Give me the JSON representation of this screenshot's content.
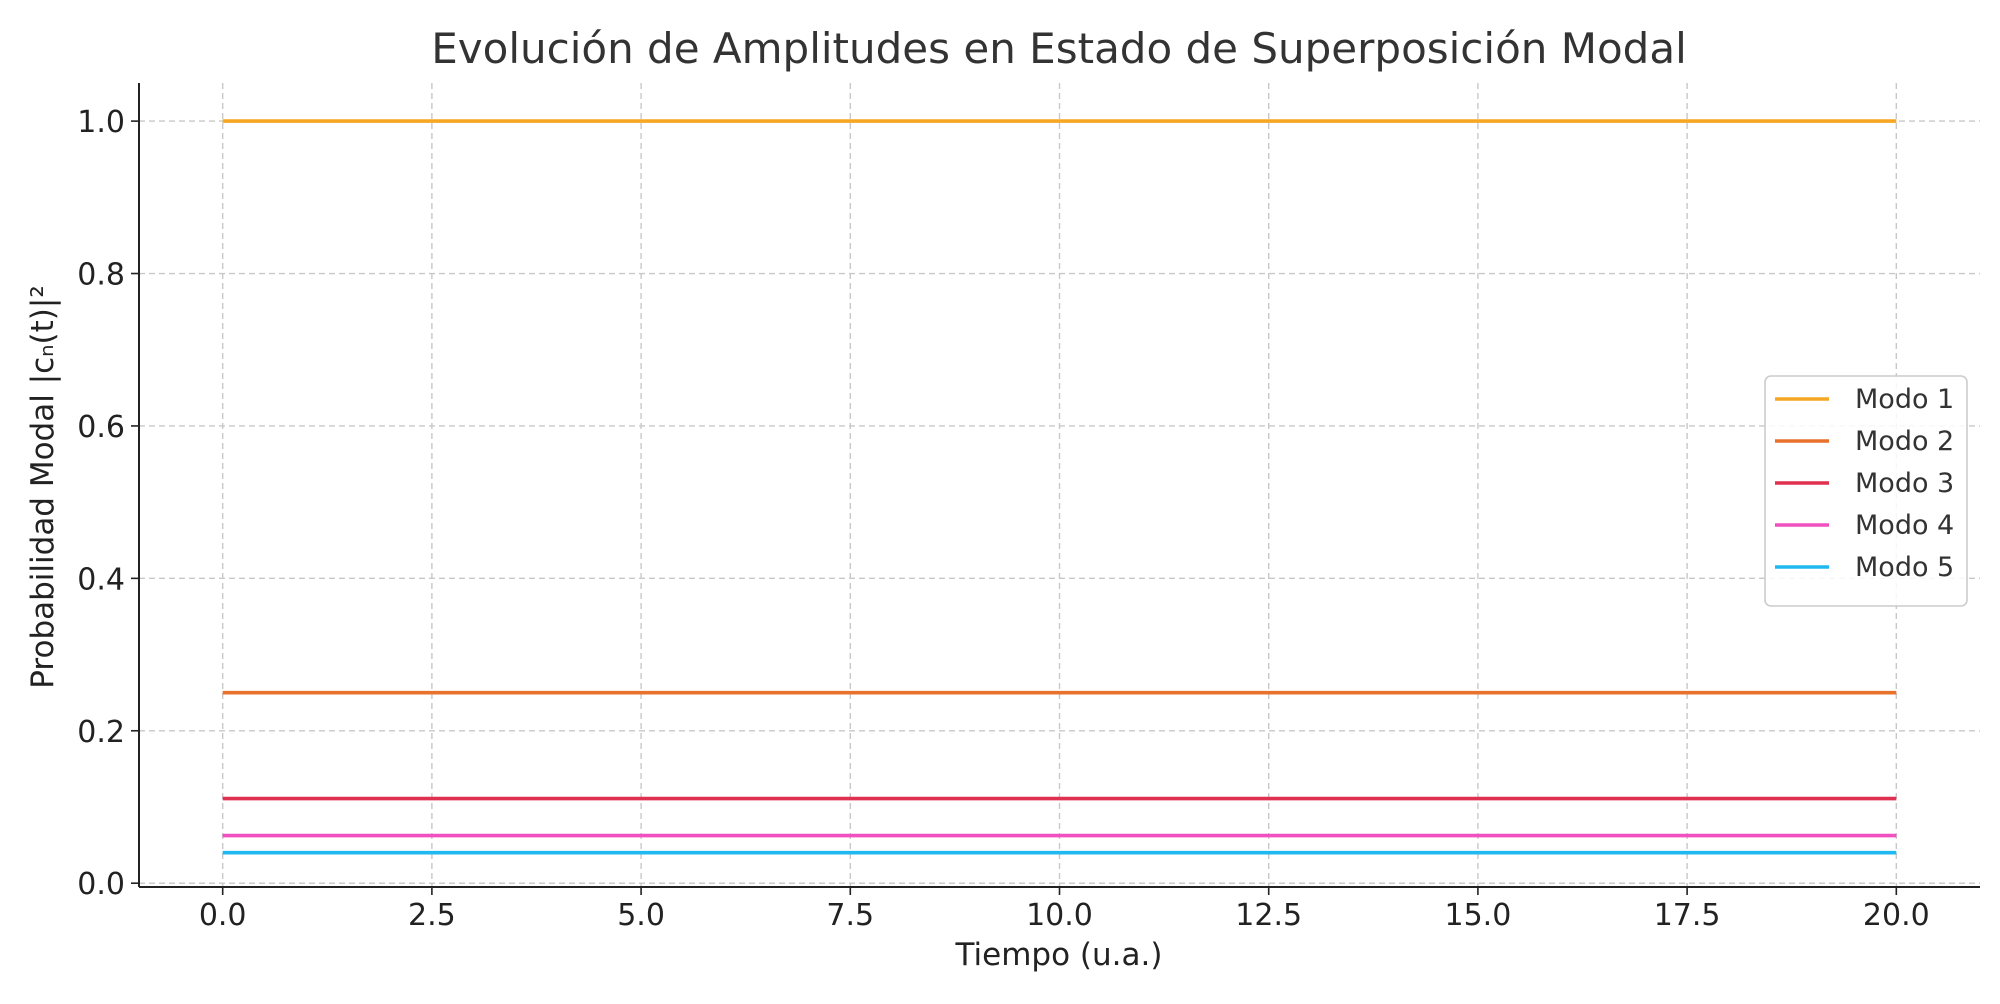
{
  "chart_data": {
    "type": "line",
    "title": "Evolución de Amplitudes en Estado de Superposición Modal",
    "xlabel": "Tiempo (u.a.)",
    "ylabel": "Probabilidad Modal |cₙ(t)|²",
    "xlim": [
      -1.0,
      21.0
    ],
    "ylim": [
      -0.005,
      1.05
    ],
    "x_ticks": [
      0.0,
      2.5,
      5.0,
      7.5,
      10.0,
      12.5,
      15.0,
      17.5,
      20.0
    ],
    "x_tick_labels": [
      "0.0",
      "2.5",
      "5.0",
      "7.5",
      "10.0",
      "12.5",
      "15.0",
      "17.5",
      "20.0"
    ],
    "y_ticks": [
      0.0,
      0.2,
      0.4,
      0.6,
      0.8,
      1.0
    ],
    "y_tick_labels": [
      "0.0",
      "0.2",
      "0.4",
      "0.6",
      "0.8",
      "1.0"
    ],
    "x": [
      0.0,
      20.0
    ],
    "grid": true,
    "grid_style": "dashed",
    "legend_position": "right",
    "series": [
      {
        "name": "Modo 1",
        "color": "#f5a623",
        "values": [
          1.0,
          1.0
        ]
      },
      {
        "name": "Modo 2",
        "color": "#e8712b",
        "values": [
          0.25,
          0.25
        ]
      },
      {
        "name": "Modo 3",
        "color": "#e03050",
        "values": [
          0.111,
          0.111
        ]
      },
      {
        "name": "Modo 4",
        "color": "#f050c0",
        "values": [
          0.0625,
          0.0625
        ]
      },
      {
        "name": "Modo 5",
        "color": "#20b8f0",
        "values": [
          0.04,
          0.04
        ]
      }
    ]
  }
}
